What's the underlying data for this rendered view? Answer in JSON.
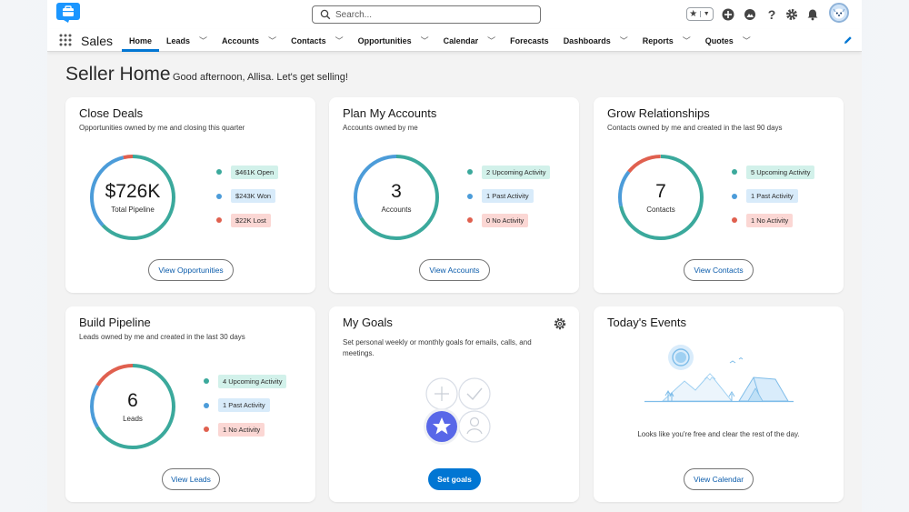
{
  "search": {
    "placeholder": "Search..."
  },
  "app": {
    "name": "Sales"
  },
  "nav": {
    "tabs": [
      {
        "label": "Home",
        "has_menu": false,
        "active": true
      },
      {
        "label": "Leads",
        "has_menu": true
      },
      {
        "label": "Accounts",
        "has_menu": true
      },
      {
        "label": "Contacts",
        "has_menu": true
      },
      {
        "label": "Opportunities",
        "has_menu": true
      },
      {
        "label": "Calendar",
        "has_menu": true
      },
      {
        "label": "Forecasts",
        "has_menu": false
      },
      {
        "label": "Dashboards",
        "has_menu": true
      },
      {
        "label": "Reports",
        "has_menu": true
      },
      {
        "label": "Quotes",
        "has_menu": true
      }
    ]
  },
  "header": {
    "title": "Seller Home",
    "greeting": "Good afternoon, Allisa. Let's get selling!"
  },
  "colors": {
    "accent": "#0176d3",
    "green": "#3ba99c",
    "blue": "#4c9cd9",
    "red": "#e0604f"
  },
  "cards": {
    "close_deals": {
      "title": "Close Deals",
      "subtitle": "Opportunities owned by me and closing this quarter",
      "value": "$726K",
      "value_label": "Total Pipeline",
      "legend": [
        {
          "label": "$461K Open",
          "color": "green"
        },
        {
          "label": "$243K Won",
          "color": "blue"
        },
        {
          "label": "$22K Lost",
          "color": "red"
        }
      ],
      "button": "View Opportunities"
    },
    "plan_accounts": {
      "title": "Plan My Accounts",
      "subtitle": "Accounts owned by me",
      "value": "3",
      "value_label": "Accounts",
      "legend": [
        {
          "label": "2 Upcoming Activity",
          "color": "green"
        },
        {
          "label": "1 Past Activity",
          "color": "blue"
        },
        {
          "label": "0 No Activity",
          "color": "red"
        }
      ],
      "button": "View Accounts"
    },
    "grow_relationships": {
      "title": "Grow Relationships",
      "subtitle": "Contacts owned by me and created in the last 90 days",
      "value": "7",
      "value_label": "Contacts",
      "legend": [
        {
          "label": "5 Upcoming Activity",
          "color": "green"
        },
        {
          "label": "1 Past Activity",
          "color": "blue"
        },
        {
          "label": "1 No Activity",
          "color": "red"
        }
      ],
      "button": "View Contacts"
    },
    "build_pipeline": {
      "title": "Build Pipeline",
      "subtitle": "Leads owned by me and created in the last 30 days",
      "value": "6",
      "value_label": "Leads",
      "legend": [
        {
          "label": "4 Upcoming Activity",
          "color": "green"
        },
        {
          "label": "1 Past Activity",
          "color": "blue"
        },
        {
          "label": "1 No Activity",
          "color": "red"
        }
      ],
      "button": "View Leads"
    },
    "my_goals": {
      "title": "My Goals",
      "text": "Set personal weekly or monthly goals for emails, calls, and meetings.",
      "button": "Set goals"
    },
    "todays_events": {
      "title": "Today's Events",
      "text": "Looks like you're free and clear the rest of the day.",
      "button": "View Calendar"
    }
  }
}
